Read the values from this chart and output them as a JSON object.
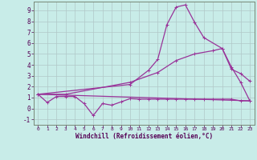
{
  "xlabel": "Windchill (Refroidissement éolien,°C)",
  "bg_color": "#c8ece8",
  "grid_color": "#b0c8c8",
  "line_color": "#993399",
  "xlim": [
    -0.5,
    23.5
  ],
  "ylim": [
    -1.5,
    9.8
  ],
  "xticks": [
    0,
    1,
    2,
    3,
    4,
    5,
    6,
    7,
    8,
    9,
    10,
    11,
    12,
    13,
    14,
    15,
    16,
    17,
    18,
    19,
    20,
    21,
    22,
    23
  ],
  "yticks": [
    -1,
    0,
    1,
    2,
    3,
    4,
    5,
    6,
    7,
    8,
    9
  ],
  "series1_zigzag": [
    [
      0,
      1.3
    ],
    [
      1,
      0.55
    ],
    [
      2,
      1.1
    ],
    [
      3,
      1.1
    ],
    [
      4,
      1.1
    ],
    [
      5,
      0.45
    ],
    [
      6,
      -0.65
    ],
    [
      7,
      0.45
    ],
    [
      8,
      0.3
    ],
    [
      9,
      0.6
    ],
    [
      10,
      0.9
    ],
    [
      11,
      0.85
    ],
    [
      12,
      0.85
    ],
    [
      13,
      0.85
    ],
    [
      14,
      0.85
    ],
    [
      15,
      0.85
    ],
    [
      16,
      0.85
    ],
    [
      17,
      0.85
    ],
    [
      18,
      0.85
    ],
    [
      19,
      0.85
    ],
    [
      20,
      0.85
    ],
    [
      21,
      0.85
    ],
    [
      22,
      0.7
    ],
    [
      23,
      0.7
    ]
  ],
  "series2_slope": [
    [
      0,
      1.3
    ],
    [
      3,
      1.3
    ],
    [
      10,
      2.4
    ],
    [
      13,
      3.3
    ],
    [
      15,
      4.4
    ],
    [
      17,
      5.0
    ],
    [
      19,
      5.3
    ],
    [
      20,
      5.5
    ],
    [
      21,
      3.6
    ],
    [
      22,
      3.2
    ],
    [
      23,
      2.5
    ]
  ],
  "series3_peak": [
    [
      0,
      1.3
    ],
    [
      10,
      2.2
    ],
    [
      12,
      3.5
    ],
    [
      13,
      4.5
    ],
    [
      14,
      7.7
    ],
    [
      15,
      9.3
    ],
    [
      16,
      9.5
    ],
    [
      17,
      7.9
    ],
    [
      18,
      6.5
    ],
    [
      20,
      5.5
    ],
    [
      21,
      3.8
    ],
    [
      22,
      2.4
    ],
    [
      23,
      0.7
    ]
  ],
  "series4_flat": [
    [
      0,
      1.3
    ],
    [
      23,
      0.7
    ]
  ]
}
